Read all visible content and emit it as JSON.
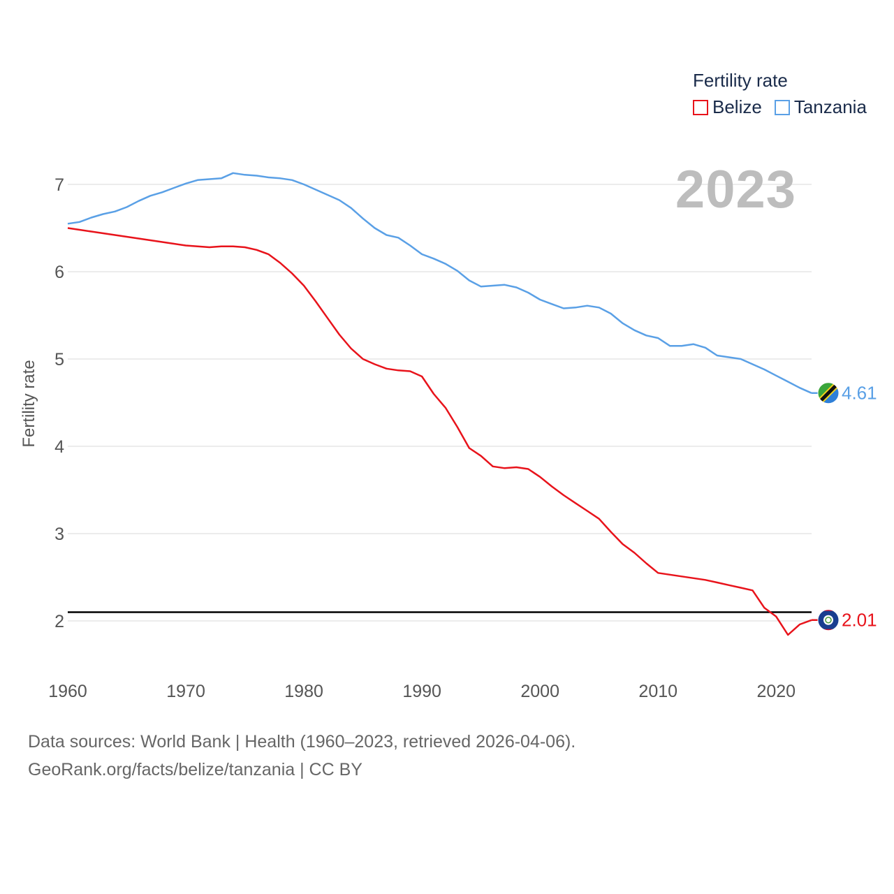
{
  "chart_data": {
    "type": "line",
    "title": "",
    "year_display": "2023",
    "xlabel": "",
    "ylabel": "Fertility rate",
    "xlim": [
      1960,
      2023
    ],
    "ylim": [
      1.5,
      7.5
    ],
    "x_ticks": [
      1960,
      1970,
      1980,
      1990,
      2000,
      2010,
      2020
    ],
    "y_ticks": [
      2,
      3,
      4,
      5,
      6,
      7
    ],
    "grid": true,
    "reference_line": 2.1,
    "legend": {
      "title": "Fertility rate",
      "placement": "top-right",
      "entries": [
        "Belize",
        "Tanzania"
      ]
    },
    "x": [
      1960,
      1961,
      1962,
      1963,
      1964,
      1965,
      1966,
      1967,
      1968,
      1969,
      1970,
      1971,
      1972,
      1973,
      1974,
      1975,
      1976,
      1977,
      1978,
      1979,
      1980,
      1981,
      1982,
      1983,
      1984,
      1985,
      1986,
      1987,
      1988,
      1989,
      1990,
      1991,
      1992,
      1993,
      1994,
      1995,
      1996,
      1997,
      1998,
      1999,
      2000,
      2001,
      2002,
      2003,
      2004,
      2005,
      2006,
      2007,
      2008,
      2009,
      2010,
      2011,
      2012,
      2013,
      2014,
      2015,
      2016,
      2017,
      2018,
      2019,
      2020,
      2021,
      2022,
      2023
    ],
    "series": [
      {
        "name": "Belize",
        "color": "#e8131b",
        "end_label": "2.01",
        "values": [
          6.5,
          6.48,
          6.46,
          6.44,
          6.42,
          6.4,
          6.38,
          6.36,
          6.34,
          6.32,
          6.3,
          6.29,
          6.28,
          6.29,
          6.29,
          6.28,
          6.25,
          6.2,
          6.1,
          5.98,
          5.84,
          5.66,
          5.47,
          5.28,
          5.12,
          5.0,
          4.94,
          4.89,
          4.87,
          4.86,
          4.8,
          4.6,
          4.44,
          4.22,
          3.98,
          3.89,
          3.77,
          3.75,
          3.76,
          3.74,
          3.65,
          3.54,
          3.44,
          3.35,
          3.26,
          3.17,
          3.02,
          2.88,
          2.78,
          2.66,
          2.55,
          2.53,
          2.51,
          2.49,
          2.47,
          2.44,
          2.41,
          2.38,
          2.35,
          2.15,
          2.05,
          1.84,
          1.96,
          2.01
        ]
      },
      {
        "name": "Tanzania",
        "color": "#5aa0e6",
        "end_label": "4.61",
        "values": [
          6.55,
          6.57,
          6.62,
          6.66,
          6.69,
          6.74,
          6.81,
          6.87,
          6.91,
          6.96,
          7.01,
          7.05,
          7.06,
          7.07,
          7.13,
          7.11,
          7.1,
          7.08,
          7.07,
          7.05,
          7.0,
          6.94,
          6.88,
          6.82,
          6.73,
          6.61,
          6.5,
          6.42,
          6.39,
          6.3,
          6.2,
          6.15,
          6.09,
          6.01,
          5.9,
          5.83,
          5.84,
          5.85,
          5.82,
          5.76,
          5.68,
          5.63,
          5.58,
          5.59,
          5.61,
          5.59,
          5.52,
          5.41,
          5.33,
          5.27,
          5.24,
          5.15,
          5.15,
          5.17,
          5.13,
          5.04,
          5.02,
          5.0,
          4.94,
          4.88,
          4.81,
          4.74,
          4.67,
          4.61
        ]
      }
    ]
  },
  "footer": {
    "line1": "Data sources: World Bank | Health (1960–2023, retrieved 2026-04-06).",
    "line2": "GeoRank.org/facts/belize/tanzania | CC BY"
  }
}
